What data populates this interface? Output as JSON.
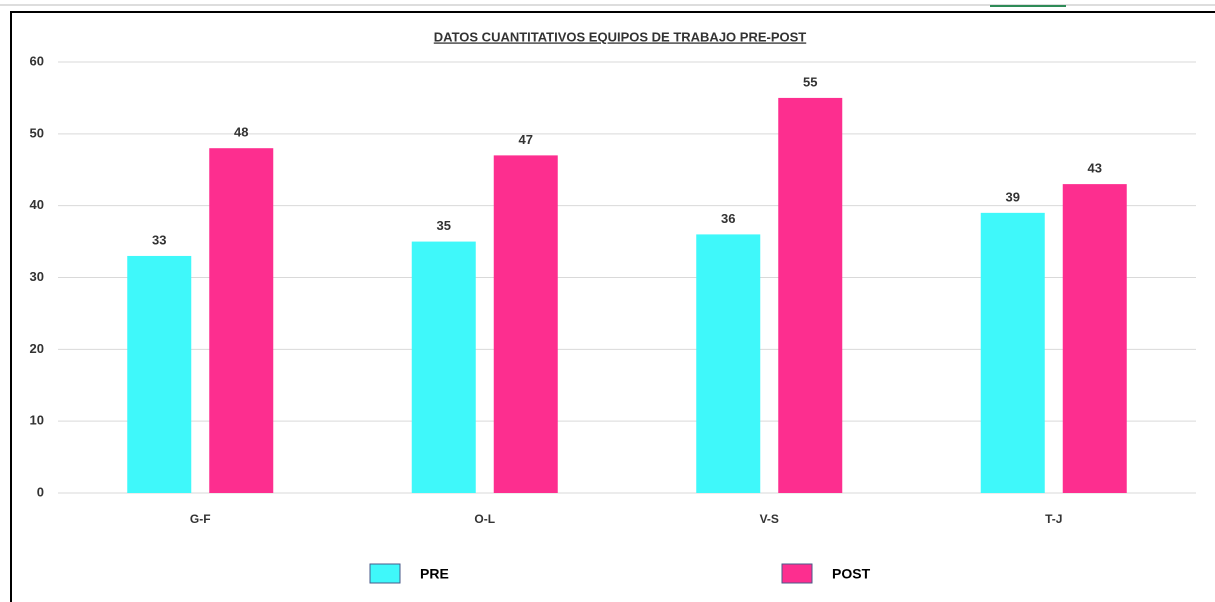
{
  "chart_data": {
    "type": "bar",
    "title": "DATOS CUANTITATIVOS EQUIPOS DE TRABAJO PRE-POST",
    "categories": [
      "G-F",
      "O-L",
      "V-S",
      "T-J"
    ],
    "series": [
      {
        "name": "PRE",
        "color": "#3ff8fa",
        "values": [
          33,
          35,
          36,
          39
        ]
      },
      {
        "name": "POST",
        "color": "#fd2e8f",
        "values": [
          48,
          47,
          55,
          43
        ]
      }
    ],
    "ylim": [
      0,
      60
    ],
    "yticks": [
      0,
      10,
      20,
      30,
      40,
      50,
      60
    ],
    "grid": true,
    "legend": "bottom"
  }
}
